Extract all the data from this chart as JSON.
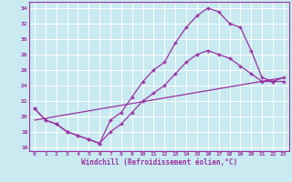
{
  "xlabel": "Windchill (Refroidissement éolien,°C)",
  "ylabel": "",
  "bg_color": "#c8eaf0",
  "line_color": "#9b30a0",
  "grid_color": "#ffffff",
  "xlim": [
    -0.5,
    23.5
  ],
  "ylim": [
    15.5,
    34.8
  ],
  "yticks": [
    16,
    18,
    20,
    22,
    24,
    26,
    28,
    30,
    32,
    34
  ],
  "xticks": [
    0,
    1,
    2,
    3,
    4,
    5,
    6,
    7,
    8,
    9,
    10,
    11,
    12,
    13,
    14,
    15,
    16,
    17,
    18,
    19,
    20,
    21,
    22,
    23
  ],
  "line1_x": [
    0,
    1,
    2,
    3,
    4,
    5,
    6,
    7,
    8,
    9,
    10,
    11,
    12,
    13,
    14,
    15,
    16,
    17,
    18,
    19,
    20,
    21,
    22,
    23
  ],
  "line1_y": [
    21.0,
    19.5,
    19.0,
    18.0,
    17.5,
    17.0,
    16.5,
    19.5,
    20.5,
    22.5,
    24.5,
    26.0,
    27.0,
    29.5,
    31.5,
    33.0,
    34.0,
    33.5,
    32.0,
    31.5,
    28.5,
    25.0,
    24.5,
    24.5
  ],
  "line2_x": [
    0,
    1,
    2,
    3,
    4,
    5,
    6,
    7,
    8,
    9,
    10,
    11,
    12,
    13,
    14,
    15,
    16,
    17,
    18,
    19,
    20,
    21,
    22,
    23
  ],
  "line2_y": [
    21.0,
    19.5,
    19.0,
    18.0,
    17.5,
    17.0,
    16.5,
    18.0,
    19.0,
    20.5,
    22.0,
    23.0,
    24.0,
    25.5,
    27.0,
    28.0,
    28.5,
    28.0,
    27.5,
    26.5,
    25.5,
    24.5,
    24.5,
    25.0
  ],
  "line3_x": [
    0,
    23
  ],
  "line3_y": [
    19.5,
    25.0
  ]
}
